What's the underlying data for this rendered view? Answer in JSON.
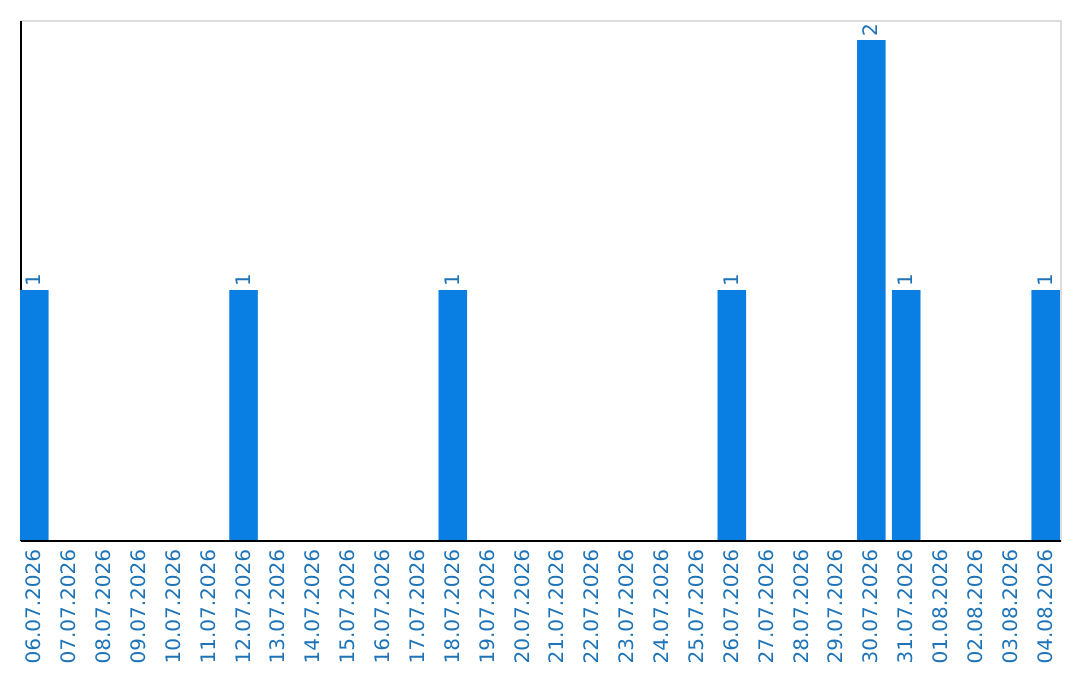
{
  "chart_data": {
    "type": "bar",
    "categories": [
      "06.07.2026",
      "07.07.2026",
      "08.07.2026",
      "09.07.2026",
      "10.07.2026",
      "11.07.2026",
      "12.07.2026",
      "13.07.2026",
      "14.07.2026",
      "15.07.2026",
      "16.07.2026",
      "17.07.2026",
      "18.07.2026",
      "19.07.2026",
      "20.07.2026",
      "21.07.2026",
      "22.07.2026",
      "23.07.2026",
      "24.07.2026",
      "25.07.2026",
      "26.07.2026",
      "27.07.2026",
      "28.07.2026",
      "29.07.2026",
      "30.07.2026",
      "31.07.2026",
      "01.08.2026",
      "02.08.2026",
      "03.08.2026",
      "04.08.2026"
    ],
    "values": [
      1,
      0,
      0,
      0,
      0,
      0,
      1,
      0,
      0,
      0,
      0,
      0,
      1,
      0,
      0,
      0,
      0,
      0,
      0,
      0,
      1,
      0,
      0,
      0,
      2,
      1,
      0,
      0,
      0,
      1
    ],
    "value_labels": [
      "1",
      null,
      null,
      null,
      null,
      null,
      "1",
      null,
      null,
      null,
      null,
      null,
      "1",
      null,
      null,
      null,
      null,
      null,
      null,
      null,
      "1",
      null,
      null,
      null,
      "2",
      "1",
      null,
      null,
      null,
      "1"
    ],
    "color": "#0a7fe3",
    "ylim": [
      0,
      2.08
    ],
    "grid": false
  }
}
